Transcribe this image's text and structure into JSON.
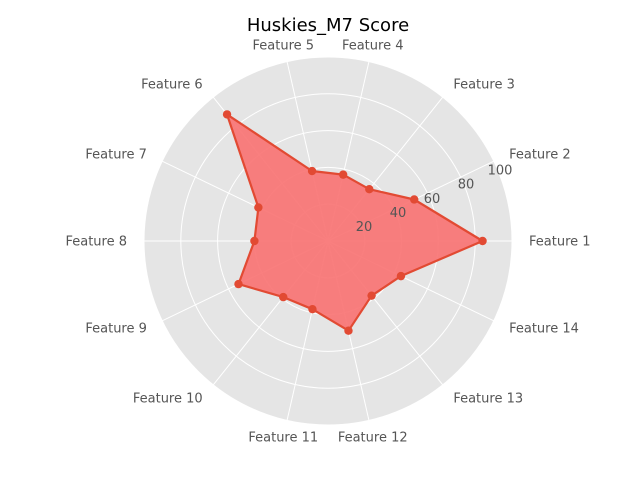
{
  "chart_data": {
    "type": "radar",
    "title": "Huskies_M7 Score",
    "categories": [
      "Feature 1",
      "Feature 2",
      "Feature 3",
      "Feature 4",
      "Feature 5",
      "Feature 6",
      "Feature 7",
      "Feature 8",
      "Feature 9",
      "Feature 10",
      "Feature 11",
      "Feature 12",
      "Feature 13",
      "Feature 14"
    ],
    "series": [
      {
        "values": [
          84,
          52,
          36,
          37,
          39,
          88,
          42,
          40,
          54,
          39,
          38,
          50,
          38,
          44
        ]
      }
    ],
    "rlim": [
      0,
      100
    ],
    "r_ticks": [
      "20",
      "40",
      "60",
      "80",
      "100"
    ],
    "grid": true,
    "colors": {
      "background": "#e5e5e5",
      "grid": "#ffffff",
      "series_line": "#e24a33",
      "series_fill": "#f87474"
    }
  }
}
